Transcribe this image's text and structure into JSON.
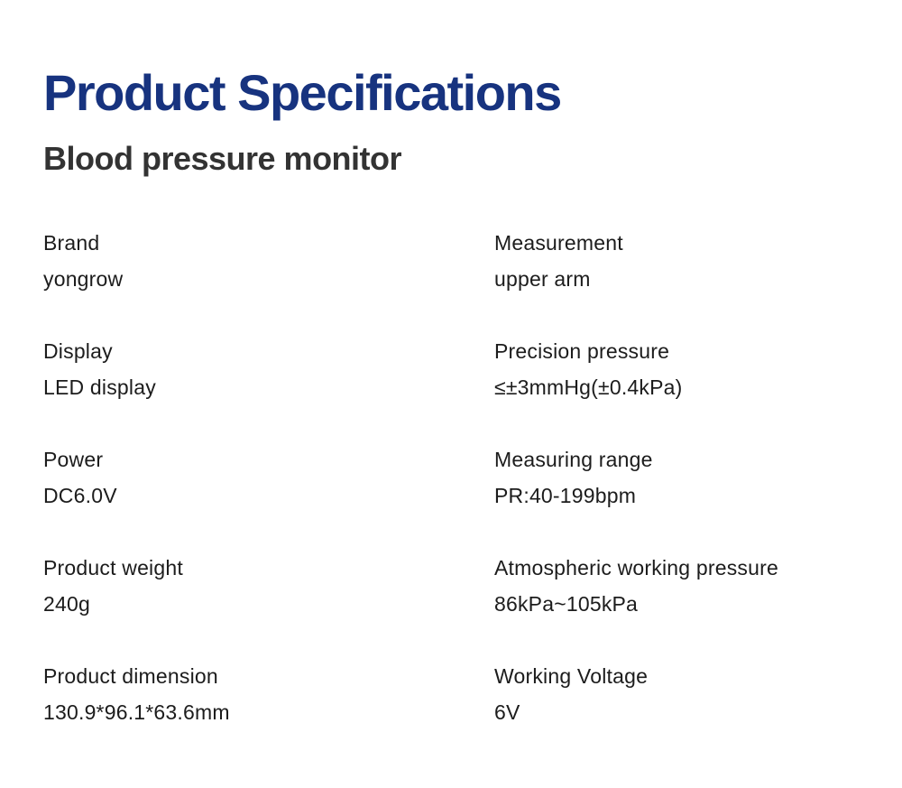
{
  "page": {
    "title": "Product Specifications",
    "subtitle": "Blood pressure monitor",
    "title_color": "#17337f",
    "background_color": "#ffffff",
    "text_color": "#1c1c1c"
  },
  "specs": {
    "left": [
      {
        "label": "Brand",
        "value": "yongrow"
      },
      {
        "label": "Display",
        "value": "LED display"
      },
      {
        "label": "Power",
        "value": "DC6.0V"
      },
      {
        "label": "Product weight",
        "value": "240g"
      },
      {
        "label": "Product dimension",
        "value": "130.9*96.1*63.6mm"
      }
    ],
    "right": [
      {
        "label": "Measurement",
        "value": "upper arm"
      },
      {
        "label": "Precision pressure",
        "value": "≤±3mmHg(±0.4kPa)"
      },
      {
        "label": "Measuring range",
        "value": "PR:40-199bpm"
      },
      {
        "label": "Atmospheric working pressure",
        "value": "86kPa~105kPa"
      },
      {
        "label": "Working Voltage",
        "value": "6V"
      }
    ]
  }
}
